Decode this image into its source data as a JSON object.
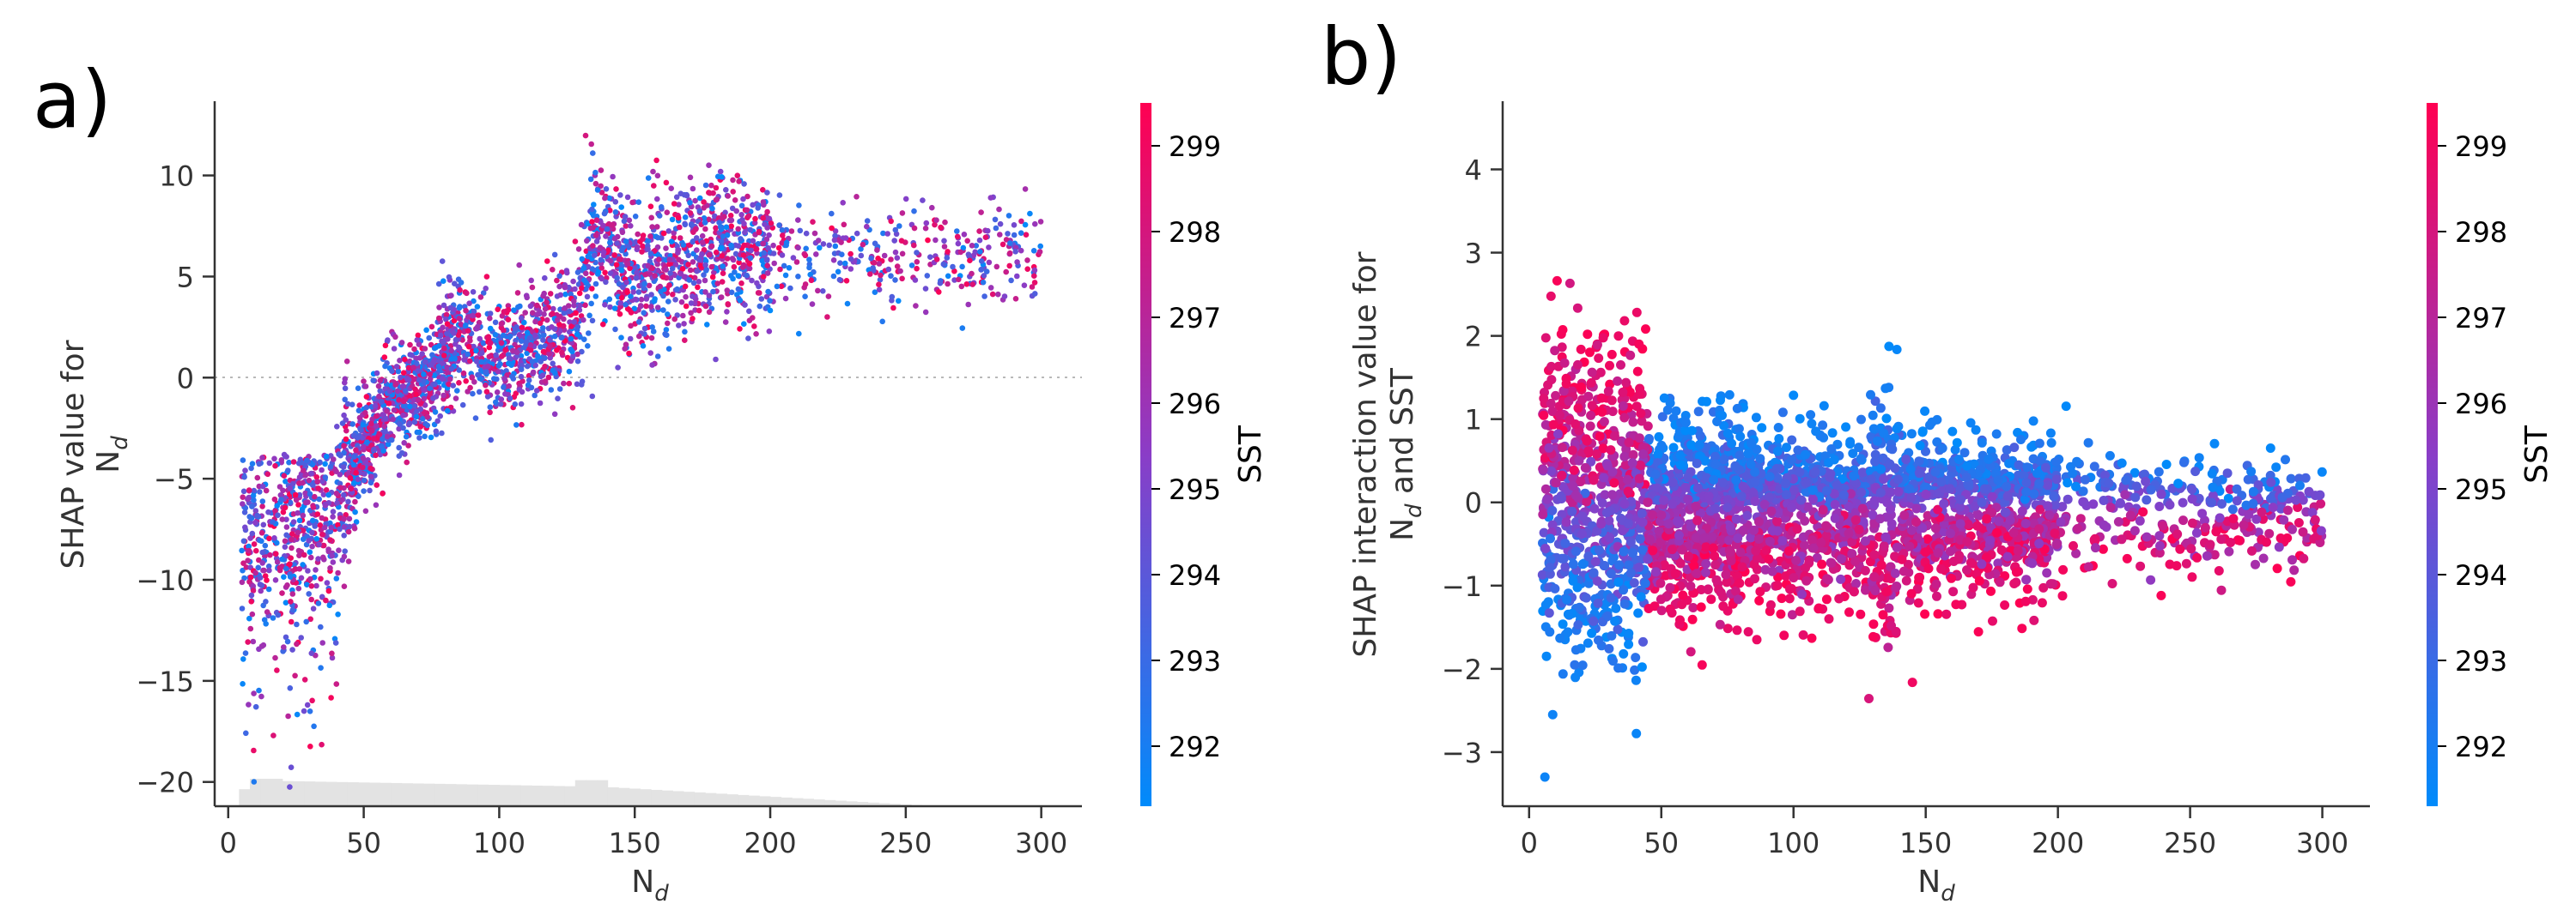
{
  "chart_data": [
    {
      "panel_label": "a)",
      "type": "scatter",
      "title": "",
      "xlabel": "N",
      "xlabel_sub": "d",
      "ylabel_line1": "SHAP value for",
      "ylabel_line2": "N",
      "ylabel_line2_sub": "d",
      "xlim": [
        -5,
        315
      ],
      "ylim": [
        -21.2,
        13.8
      ],
      "xticks": [
        0,
        50,
        100,
        150,
        200,
        250,
        300
      ],
      "yticks": [
        -20,
        -15,
        -10,
        -5,
        0,
        5,
        10
      ],
      "zero_line": true,
      "marginal_histogram": true,
      "color_feature": "SST",
      "colorbar": {
        "label": "SST",
        "range": [
          291.3,
          299.5
        ],
        "ticks": [
          292,
          293,
          294,
          295,
          296,
          297,
          298,
          299
        ]
      },
      "trend": [
        {
          "x": 5,
          "y": -8
        },
        {
          "x": 20,
          "y": -7
        },
        {
          "x": 40,
          "y": -6
        },
        {
          "x": 55,
          "y": -2
        },
        {
          "x": 70,
          "y": -0.5
        },
        {
          "x": 85,
          "y": 2
        },
        {
          "x": 100,
          "y": 1
        },
        {
          "x": 120,
          "y": 2
        },
        {
          "x": 128,
          "y": 3
        },
        {
          "x": 135,
          "y": 7
        },
        {
          "x": 150,
          "y": 5
        },
        {
          "x": 180,
          "y": 6.5
        },
        {
          "x": 220,
          "y": 6
        },
        {
          "x": 300,
          "y": 6
        }
      ]
    },
    {
      "panel_label": "b)",
      "type": "scatter",
      "title": "",
      "xlabel": "N",
      "xlabel_sub": "d",
      "ylabel_line1": "SHAP interaction value for",
      "ylabel_line2": "N",
      "ylabel_line2_sub": "d",
      "ylabel_line2_suffix": " and SST",
      "xlim": [
        -10,
        318
      ],
      "ylim": [
        -3.65,
        4.85
      ],
      "xticks": [
        0,
        50,
        100,
        150,
        200,
        250,
        300
      ],
      "yticks": [
        -3,
        -2,
        -1,
        0,
        1,
        2,
        3,
        4
      ],
      "color_feature": "SST",
      "colorbar": {
        "label": "SST",
        "range": [
          291.3,
          299.5
        ],
        "ticks": [
          292,
          293,
          294,
          295,
          296,
          297,
          298,
          299
        ]
      },
      "pattern": "warm SST positive and cool SST negative for N_d < 45; reversed for N_d > 45"
    }
  ]
}
